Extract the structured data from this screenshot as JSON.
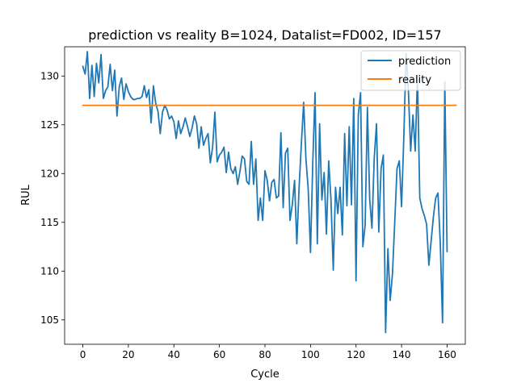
{
  "chart_data": {
    "type": "line",
    "title": "prediction vs reality B=1024, Datalist=FD002, ID=157",
    "xlabel": "Cycle",
    "ylabel": "RUL",
    "xlim": [
      -8,
      168
    ],
    "ylim": [
      102.5,
      133.0
    ],
    "x_ticks": [
      0,
      20,
      40,
      60,
      80,
      100,
      120,
      140,
      160
    ],
    "y_ticks": [
      105,
      110,
      115,
      120,
      125,
      130
    ],
    "grid": false,
    "legend_position": "top-right",
    "series": [
      {
        "name": "prediction",
        "color": "#1f77b4",
        "x_start": 0,
        "values": [
          131.0,
          130.2,
          132.5,
          127.7,
          131.1,
          127.9,
          131.3,
          129.3,
          132.2,
          127.7,
          128.5,
          128.9,
          131.2,
          128.5,
          130.6,
          125.9,
          128.9,
          129.8,
          127.6,
          129.2,
          128.4,
          127.9,
          127.6,
          127.6,
          127.7,
          127.7,
          127.9,
          129.0,
          127.8,
          128.6,
          125.2,
          129.0,
          127.2,
          126.4,
          124.1,
          126.3,
          127.0,
          126.5,
          125.6,
          125.9,
          125.3,
          123.6,
          125.4,
          124.1,
          124.8,
          125.7,
          124.8,
          123.8,
          124.7,
          125.9,
          125.1,
          122.6,
          124.8,
          122.9,
          123.6,
          124.1,
          121.1,
          122.7,
          126.3,
          121.2,
          121.9,
          122.2,
          122.7,
          120.1,
          122.2,
          120.5,
          120.0,
          120.7,
          118.9,
          120.2,
          121.8,
          121.5,
          119.2,
          118.9,
          123.3,
          118.9,
          121.5,
          115.2,
          117.5,
          115.2,
          120.3,
          119.3,
          117.2,
          119.1,
          119.4,
          117.5,
          117.7,
          124.2,
          116.5,
          122.1,
          122.6,
          115.2,
          116.8,
          119.3,
          112.8,
          118.6,
          123.1,
          127.3,
          121.5,
          118.4,
          111.9,
          121.1,
          128.3,
          112.8,
          125.1,
          117.3,
          120.1,
          113.8,
          121.3,
          117.3,
          110.1,
          118.6,
          115.9,
          118.6,
          113.7,
          124.1,
          116.7,
          124.8,
          116.8,
          127.7,
          109.0,
          126.0,
          128.3,
          112.5,
          114.7,
          126.8,
          117.4,
          114.4,
          121.6,
          125.1,
          114.0,
          120.5,
          121.9,
          103.7,
          112.3,
          107.0,
          109.7,
          115.0,
          120.5,
          121.3,
          116.6,
          123.8,
          132.3,
          128.5,
          122.3,
          126.0,
          122.3,
          130.1,
          117.5,
          116.4,
          115.7,
          114.8,
          110.6,
          113.1,
          115.6,
          117.5,
          118.0,
          112.9,
          104.7,
          129.4,
          112.0
        ]
      },
      {
        "name": "reality",
        "color": "#ff7f0e",
        "x_start": 0,
        "values": [
          127.0,
          127.0,
          127.0,
          127.0,
          127.0,
          127.0,
          127.0,
          127.0,
          127.0,
          127.0,
          127.0,
          127.0,
          127.0,
          127.0,
          127.0,
          127.0,
          127.0,
          127.0,
          127.0,
          127.0,
          127.0,
          127.0,
          127.0,
          127.0,
          127.0,
          127.0,
          127.0,
          127.0,
          127.0,
          127.0,
          127.0,
          127.0,
          127.0,
          127.0,
          127.0,
          127.0,
          127.0,
          127.0,
          127.0,
          127.0,
          127.0,
          127.0,
          127.0,
          127.0,
          127.0,
          127.0,
          127.0,
          127.0,
          127.0,
          127.0,
          127.0,
          127.0,
          127.0,
          127.0,
          127.0,
          127.0,
          127.0,
          127.0,
          127.0,
          127.0,
          127.0,
          127.0,
          127.0,
          127.0,
          127.0,
          127.0,
          127.0,
          127.0,
          127.0,
          127.0,
          127.0,
          127.0,
          127.0,
          127.0,
          127.0,
          127.0,
          127.0,
          127.0,
          127.0,
          127.0,
          127.0,
          127.0,
          127.0,
          127.0,
          127.0,
          127.0,
          127.0,
          127.0,
          127.0,
          127.0,
          127.0,
          127.0,
          127.0,
          127.0,
          127.0,
          127.0,
          127.0,
          127.0,
          127.0,
          127.0,
          127.0,
          127.0,
          127.0,
          127.0,
          127.0,
          127.0,
          127.0,
          127.0,
          127.0,
          127.0,
          127.0,
          127.0,
          127.0,
          127.0,
          127.0,
          127.0,
          127.0,
          127.0,
          127.0,
          127.0,
          127.0,
          127.0,
          127.0,
          127.0,
          127.0,
          127.0,
          127.0,
          127.0,
          127.0,
          127.0,
          127.0,
          127.0,
          127.0,
          127.0,
          127.0,
          127.0,
          127.0,
          127.0,
          127.0,
          127.0,
          127.0,
          127.0,
          127.0,
          127.0,
          127.0,
          127.0,
          127.0,
          127.0,
          127.0,
          127.0,
          127.0,
          127.0,
          127.0,
          127.0,
          127.0,
          127.0,
          127.0,
          127.0,
          127.0,
          127.0,
          127.0,
          127.0,
          127.0,
          127.0,
          127.0
        ]
      }
    ]
  }
}
